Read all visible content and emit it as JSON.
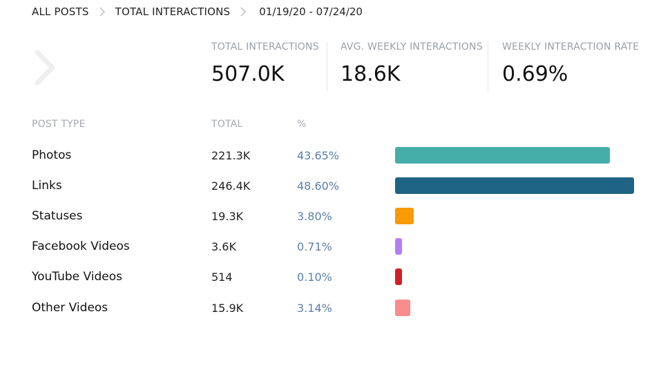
{
  "breadcrumb": {
    "items": [
      "ALL POSTS",
      "TOTAL INTERACTIONS"
    ],
    "date_range": "01/19/20 - 07/24/20"
  },
  "stats": [
    {
      "label": "TOTAL INTERACTIONS",
      "value": "507.0K"
    },
    {
      "label": "AVG. WEEKLY INTERACTIONS",
      "value": "18.6K"
    },
    {
      "label": "WEEKLY INTERACTION RATE",
      "value": "0.69%"
    }
  ],
  "table": {
    "headers": {
      "type": "POST TYPE",
      "total": "TOTAL",
      "pct": "%"
    },
    "rows": [
      {
        "type": "Photos",
        "total": "221.3K",
        "pct": "43.65%",
        "value": 43.65,
        "color": "#45ada8"
      },
      {
        "type": "Links",
        "total": "246.4K",
        "pct": "48.60%",
        "value": 48.6,
        "color": "#1f6385"
      },
      {
        "type": "Statuses",
        "total": "19.3K",
        "pct": "3.80%",
        "value": 3.8,
        "color": "#f89a06"
      },
      {
        "type": "Facebook Videos",
        "total": "3.6K",
        "pct": "0.71%",
        "value": 0.71,
        "color": "#b57ff2"
      },
      {
        "type": "YouTube Videos",
        "total": "514",
        "pct": "0.10%",
        "value": 0.1,
        "color": "#cf2027"
      },
      {
        "type": "Other Videos",
        "total": "15.9K",
        "pct": "3.14%",
        "value": 3.14,
        "color": "#fb8c8c"
      }
    ]
  },
  "icons": {
    "breadcrumb_separator": "chevron-right-icon",
    "back": "chevron-left-icon"
  }
}
